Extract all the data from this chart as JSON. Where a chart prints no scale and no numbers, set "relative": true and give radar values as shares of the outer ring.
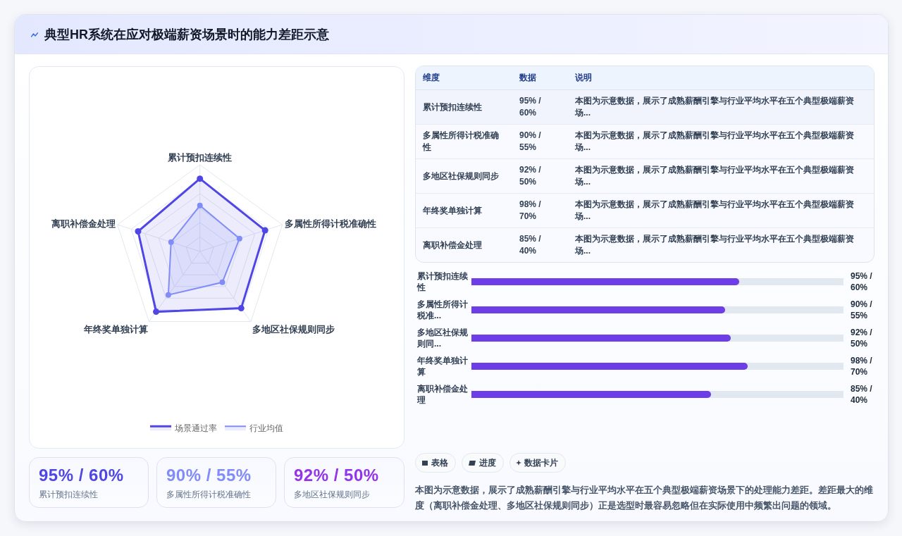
{
  "chart_data": [
    {
      "type": "radar",
      "title": "典型HR系统在应对极端薪资场景时的能力差距示意",
      "categories": [
        "累计预扣连续性",
        "多属性所得计税准确性",
        "多地区社保规则同步",
        "年终奖单独计算",
        "离职补偿金处理"
      ],
      "series": [
        {
          "name": "场景通过率",
          "color": "#4f46e5",
          "values": [
            0.84,
            0.79,
            0.81,
            0.86,
            0.75
          ]
        },
        {
          "name": "行业均值",
          "color": "#818cf8",
          "values": [
            0.53,
            0.48,
            0.44,
            0.62,
            0.35
          ]
        }
      ],
      "relative": true,
      "grid": true,
      "legend": "bottom",
      "marker": "circle"
    },
    {
      "type": "other",
      "annotations": [
        "维度",
        "数据",
        "说明",
        "累计预扣连续性",
        "95% / 60%",
        "本图为示意数据，展示了成熟薪酬引擎与行业平均水平在五个典型极端薪资场...",
        "多属性所得计税准确性",
        "90% / 55%",
        "本图为示意数据，展示了成熟薪酬引擎与行业平均水平在五个典型极端薪资场...",
        "多地区社保规则同步",
        "92% / 50%",
        "本图为示意数据，展示了成熟薪酬引擎与行业平均水平在五个典型极端薪资场...",
        "年终奖单独计算",
        "98% / 70%",
        "本图为示意数据，展示了成熟薪酬引擎与行业平均水平在五个典型极端薪资场...",
        "离职补偿金处理",
        "85% / 40%",
        "本图为示意数据，展示了成熟薪酬引擎与行业平均水平在五个典型极端薪资场..."
      ]
    },
    {
      "type": "bar",
      "orientation": "horizontal",
      "categories": [
        "累计预扣连续性",
        "多属性所得计税准...",
        "多地区社保规则同...",
        "年终奖单独计算",
        "离职补偿金处理"
      ],
      "values": [
        95,
        90,
        92,
        98,
        85
      ],
      "color": "#6d3ee8",
      "xlim": [
        0,
        132
      ],
      "value_labels": [
        "95% / 60%",
        "90% / 55%",
        "92% / 50%",
        "98% / 70%",
        "85% / 40%"
      ]
    },
    {
      "type": "other",
      "annotations": [
        "95% / 60%",
        "累计预扣连续性",
        "90% / 55%",
        "多属性所得计税准确性",
        "92% / 50%",
        "多地区社保规则同步"
      ],
      "colors": [
        "#4f46e5",
        "#818cf8",
        "#9333ea"
      ]
    },
    {
      "type": "other",
      "annotations": [
        "表格",
        "进度",
        "数据卡片",
        "本图为示意数据，展示了成熟薪酬引擎与行业平均水平在五个典型极端薪资场景下的处理能力差距。差距最大的维度（离职补偿金处理、多地区社保规则同步）正是选型时最容易忽略但在实际使用中频繁出问题的领域。"
      ]
    }
  ]
}
